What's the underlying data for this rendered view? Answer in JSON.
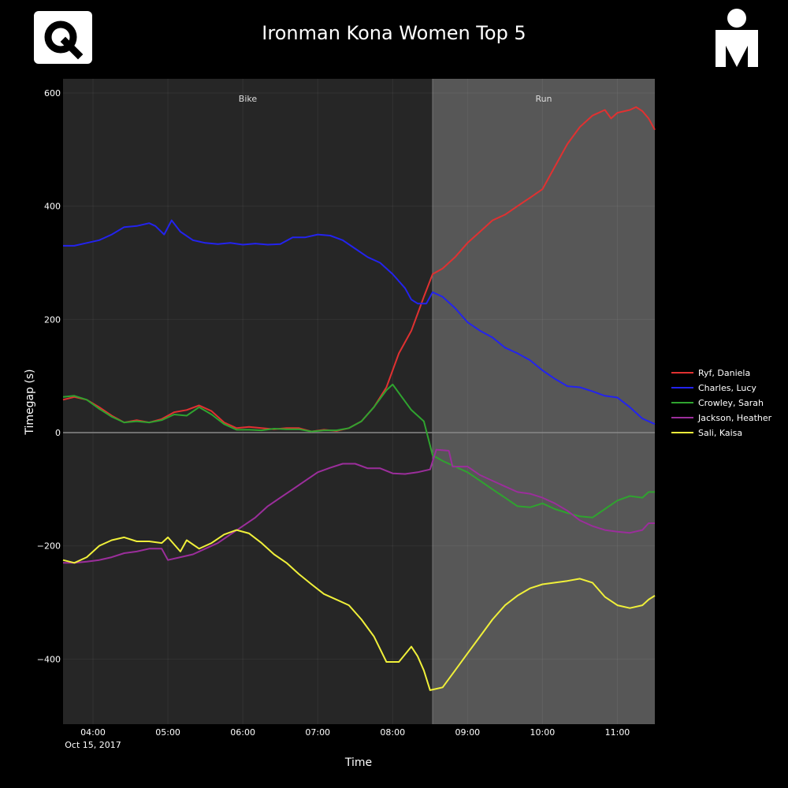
{
  "page": {
    "title": "Ironman Kona Women Top 5"
  },
  "logos": {
    "left": "q-logo-icon",
    "right": "mdot-logo-icon"
  },
  "chart_data": {
    "type": "line",
    "title": "Ironman Kona Women Top 5",
    "xlabel": "Time",
    "ylabel": "Timegap (s)",
    "x_date_label": "Oct 15, 2017",
    "xlim": [
      "03:36",
      "11:30"
    ],
    "ylim": [
      -515,
      625
    ],
    "xticks": [
      "04:00",
      "05:00",
      "06:00",
      "07:00",
      "08:00",
      "09:00",
      "10:00",
      "11:00"
    ],
    "yticks": [
      -400,
      -200,
      0,
      200,
      400,
      600
    ],
    "grid": true,
    "legend_position": "right",
    "zero_line": true,
    "segments": [
      {
        "label": "Bike",
        "start": "03:36",
        "end": "08:32",
        "color": "#262626"
      },
      {
        "label": "Run",
        "start": "08:32",
        "end": "11:30",
        "color": "#575757"
      }
    ],
    "series": [
      {
        "name": "Ryf, Daniela",
        "color": "#e03131",
        "points": [
          [
            "03:36",
            58
          ],
          [
            "03:45",
            63
          ],
          [
            "03:55",
            58
          ],
          [
            "04:05",
            45
          ],
          [
            "04:15",
            30
          ],
          [
            "04:25",
            18
          ],
          [
            "04:35",
            22
          ],
          [
            "04:45",
            18
          ],
          [
            "04:55",
            24
          ],
          [
            "05:05",
            36
          ],
          [
            "05:15",
            40
          ],
          [
            "05:25",
            48
          ],
          [
            "05:35",
            38
          ],
          [
            "05:45",
            18
          ],
          [
            "05:55",
            8
          ],
          [
            "06:05",
            10
          ],
          [
            "06:15",
            8
          ],
          [
            "06:25",
            6
          ],
          [
            "06:35",
            8
          ],
          [
            "06:45",
            8
          ],
          [
            "06:55",
            2
          ],
          [
            "07:05",
            5
          ],
          [
            "07:15",
            3
          ],
          [
            "07:25",
            8
          ],
          [
            "07:35",
            20
          ],
          [
            "07:45",
            45
          ],
          [
            "07:55",
            80
          ],
          [
            "08:05",
            140
          ],
          [
            "08:15",
            180
          ],
          [
            "08:20",
            210
          ],
          [
            "08:25",
            240
          ],
          [
            "08:32",
            280
          ],
          [
            "08:40",
            290
          ],
          [
            "08:50",
            310
          ],
          [
            "09:00",
            335
          ],
          [
            "09:10",
            355
          ],
          [
            "09:20",
            375
          ],
          [
            "09:30",
            385
          ],
          [
            "09:40",
            400
          ],
          [
            "09:50",
            415
          ],
          [
            "10:00",
            430
          ],
          [
            "10:10",
            470
          ],
          [
            "10:20",
            510
          ],
          [
            "10:30",
            540
          ],
          [
            "10:40",
            560
          ],
          [
            "10:50",
            570
          ],
          [
            "10:55",
            555
          ],
          [
            "11:00",
            565
          ],
          [
            "11:10",
            570
          ],
          [
            "11:15",
            575
          ],
          [
            "11:20",
            568
          ],
          [
            "11:25",
            555
          ],
          [
            "11:30",
            535
          ]
        ]
      },
      {
        "name": "Charles, Lucy",
        "color": "#2323ee",
        "points": [
          [
            "03:36",
            330
          ],
          [
            "03:45",
            330
          ],
          [
            "03:55",
            335
          ],
          [
            "04:05",
            340
          ],
          [
            "04:15",
            350
          ],
          [
            "04:25",
            363
          ],
          [
            "04:35",
            365
          ],
          [
            "04:45",
            370
          ],
          [
            "04:50",
            365
          ],
          [
            "04:57",
            350
          ],
          [
            "05:03",
            375
          ],
          [
            "05:10",
            355
          ],
          [
            "05:20",
            340
          ],
          [
            "05:30",
            335
          ],
          [
            "05:40",
            333
          ],
          [
            "05:50",
            335
          ],
          [
            "06:00",
            332
          ],
          [
            "06:10",
            334
          ],
          [
            "06:20",
            332
          ],
          [
            "06:30",
            333
          ],
          [
            "06:40",
            345
          ],
          [
            "06:50",
            345
          ],
          [
            "07:00",
            350
          ],
          [
            "07:10",
            348
          ],
          [
            "07:20",
            340
          ],
          [
            "07:30",
            325
          ],
          [
            "07:40",
            310
          ],
          [
            "07:50",
            300
          ],
          [
            "08:00",
            280
          ],
          [
            "08:10",
            255
          ],
          [
            "08:15",
            235
          ],
          [
            "08:20",
            228
          ],
          [
            "08:27",
            228
          ],
          [
            "08:32",
            248
          ],
          [
            "08:40",
            240
          ],
          [
            "08:50",
            220
          ],
          [
            "09:00",
            195
          ],
          [
            "09:10",
            180
          ],
          [
            "09:20",
            168
          ],
          [
            "09:30",
            150
          ],
          [
            "09:40",
            140
          ],
          [
            "09:50",
            128
          ],
          [
            "10:00",
            110
          ],
          [
            "10:10",
            95
          ],
          [
            "10:20",
            82
          ],
          [
            "10:30",
            80
          ],
          [
            "10:40",
            73
          ],
          [
            "10:50",
            65
          ],
          [
            "11:00",
            62
          ],
          [
            "11:10",
            45
          ],
          [
            "11:20",
            25
          ],
          [
            "11:30",
            15
          ]
        ]
      },
      {
        "name": "Crowley, Sarah",
        "color": "#2fa32f",
        "points": [
          [
            "03:36",
            63
          ],
          [
            "03:45",
            65
          ],
          [
            "03:55",
            58
          ],
          [
            "04:05",
            42
          ],
          [
            "04:15",
            28
          ],
          [
            "04:25",
            18
          ],
          [
            "04:35",
            20
          ],
          [
            "04:45",
            18
          ],
          [
            "04:55",
            22
          ],
          [
            "05:05",
            32
          ],
          [
            "05:15",
            30
          ],
          [
            "05:25",
            45
          ],
          [
            "05:35",
            32
          ],
          [
            "05:45",
            15
          ],
          [
            "05:55",
            5
          ],
          [
            "06:05",
            5
          ],
          [
            "06:15",
            4
          ],
          [
            "06:25",
            7
          ],
          [
            "06:35",
            6
          ],
          [
            "06:45",
            6
          ],
          [
            "06:55",
            2
          ],
          [
            "07:05",
            4
          ],
          [
            "07:15",
            4
          ],
          [
            "07:25",
            8
          ],
          [
            "07:35",
            20
          ],
          [
            "07:45",
            45
          ],
          [
            "07:55",
            75
          ],
          [
            "08:00",
            85
          ],
          [
            "08:05",
            70
          ],
          [
            "08:15",
            40
          ],
          [
            "08:25",
            20
          ],
          [
            "08:32",
            -40
          ],
          [
            "08:40",
            -50
          ],
          [
            "08:50",
            -60
          ],
          [
            "09:00",
            -70
          ],
          [
            "09:10",
            -85
          ],
          [
            "09:20",
            -100
          ],
          [
            "09:30",
            -115
          ],
          [
            "09:40",
            -130
          ],
          [
            "09:50",
            -132
          ],
          [
            "10:00",
            -125
          ],
          [
            "10:10",
            -135
          ],
          [
            "10:20",
            -142
          ],
          [
            "10:30",
            -148
          ],
          [
            "10:40",
            -150
          ],
          [
            "10:50",
            -135
          ],
          [
            "11:00",
            -120
          ],
          [
            "11:10",
            -112
          ],
          [
            "11:20",
            -115
          ],
          [
            "11:25",
            -105
          ],
          [
            "11:30",
            -105
          ]
        ]
      },
      {
        "name": "Jackson, Heather",
        "color": "#9b2e9b",
        "points": [
          [
            "03:36",
            -230
          ],
          [
            "03:45",
            -230
          ],
          [
            "03:55",
            -228
          ],
          [
            "04:05",
            -225
          ],
          [
            "04:15",
            -220
          ],
          [
            "04:25",
            -213
          ],
          [
            "04:35",
            -210
          ],
          [
            "04:45",
            -205
          ],
          [
            "04:55",
            -205
          ],
          [
            "05:00",
            -225
          ],
          [
            "05:10",
            -220
          ],
          [
            "05:20",
            -215
          ],
          [
            "05:30",
            -205
          ],
          [
            "05:40",
            -195
          ],
          [
            "05:50",
            -180
          ],
          [
            "06:00",
            -165
          ],
          [
            "06:10",
            -150
          ],
          [
            "06:20",
            -130
          ],
          [
            "06:30",
            -115
          ],
          [
            "06:40",
            -100
          ],
          [
            "06:50",
            -85
          ],
          [
            "07:00",
            -70
          ],
          [
            "07:10",
            -62
          ],
          [
            "07:20",
            -55
          ],
          [
            "07:30",
            -55
          ],
          [
            "07:40",
            -63
          ],
          [
            "07:50",
            -63
          ],
          [
            "08:00",
            -72
          ],
          [
            "08:10",
            -73
          ],
          [
            "08:20",
            -70
          ],
          [
            "08:30",
            -65
          ],
          [
            "08:35",
            -30
          ],
          [
            "08:45",
            -32
          ],
          [
            "08:48",
            -60
          ],
          [
            "08:55",
            -60
          ],
          [
            "09:00",
            -60
          ],
          [
            "09:10",
            -75
          ],
          [
            "09:20",
            -85
          ],
          [
            "09:30",
            -95
          ],
          [
            "09:40",
            -105
          ],
          [
            "09:50",
            -108
          ],
          [
            "10:00",
            -115
          ],
          [
            "10:10",
            -125
          ],
          [
            "10:20",
            -138
          ],
          [
            "10:30",
            -155
          ],
          [
            "10:40",
            -165
          ],
          [
            "10:50",
            -172
          ],
          [
            "11:00",
            -175
          ],
          [
            "11:10",
            -177
          ],
          [
            "11:20",
            -172
          ],
          [
            "11:25",
            -160
          ],
          [
            "11:30",
            -160
          ]
        ]
      },
      {
        "name": "Sali, Kaisa",
        "color": "#f0f03a",
        "points": [
          [
            "03:36",
            -225
          ],
          [
            "03:45",
            -230
          ],
          [
            "03:55",
            -220
          ],
          [
            "04:05",
            -200
          ],
          [
            "04:15",
            -190
          ],
          [
            "04:25",
            -185
          ],
          [
            "04:35",
            -192
          ],
          [
            "04:45",
            -192
          ],
          [
            "04:55",
            -195
          ],
          [
            "05:00",
            -185
          ],
          [
            "05:10",
            -210
          ],
          [
            "05:15",
            -190
          ],
          [
            "05:25",
            -205
          ],
          [
            "05:35",
            -195
          ],
          [
            "05:45",
            -180
          ],
          [
            "05:55",
            -172
          ],
          [
            "06:05",
            -178
          ],
          [
            "06:15",
            -195
          ],
          [
            "06:25",
            -215
          ],
          [
            "06:35",
            -230
          ],
          [
            "06:45",
            -250
          ],
          [
            "06:55",
            -268
          ],
          [
            "07:05",
            -285
          ],
          [
            "07:15",
            -295
          ],
          [
            "07:25",
            -305
          ],
          [
            "07:35",
            -330
          ],
          [
            "07:45",
            -360
          ],
          [
            "07:55",
            -405
          ],
          [
            "08:05",
            -405
          ],
          [
            "08:15",
            -378
          ],
          [
            "08:20",
            -395
          ],
          [
            "08:25",
            -420
          ],
          [
            "08:30",
            -455
          ],
          [
            "08:40",
            -450
          ],
          [
            "08:50",
            -420
          ],
          [
            "09:00",
            -390
          ],
          [
            "09:10",
            -360
          ],
          [
            "09:20",
            -330
          ],
          [
            "09:30",
            -305
          ],
          [
            "09:40",
            -288
          ],
          [
            "09:50",
            -275
          ],
          [
            "10:00",
            -268
          ],
          [
            "10:10",
            -265
          ],
          [
            "10:20",
            -262
          ],
          [
            "10:30",
            -258
          ],
          [
            "10:40",
            -265
          ],
          [
            "10:50",
            -290
          ],
          [
            "11:00",
            -305
          ],
          [
            "11:10",
            -310
          ],
          [
            "11:20",
            -305
          ],
          [
            "11:25",
            -295
          ],
          [
            "11:30",
            -288
          ]
        ]
      }
    ]
  }
}
